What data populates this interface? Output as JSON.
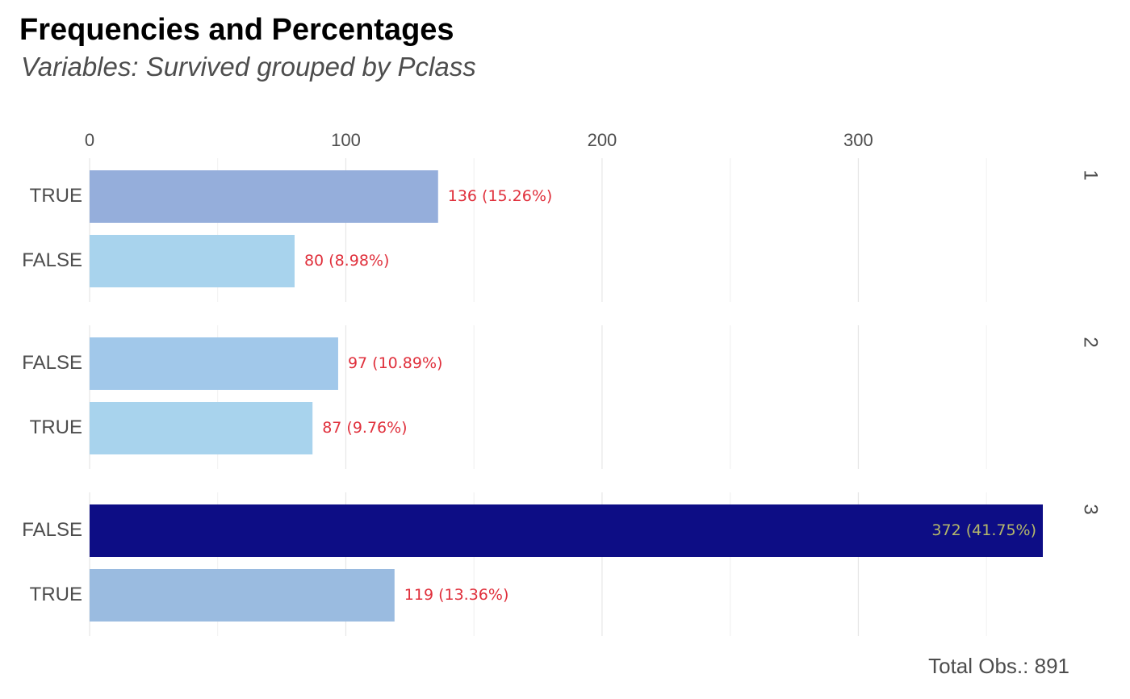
{
  "chart_data": {
    "type": "bar",
    "orientation": "horizontal",
    "title": "Frequencies and Percentages",
    "subtitle": "Variables: Survived grouped by Pclass",
    "caption": "Total Obs.: 891",
    "xlim": [
      0,
      372
    ],
    "x_ticks": [
      0,
      100,
      200,
      300
    ],
    "grid": true,
    "panels": [
      {
        "facet": "1",
        "bars": [
          {
            "category": "TRUE",
            "value": 136,
            "label": "136 (15.26%)",
            "color": "#95aedb"
          },
          {
            "category": "FALSE",
            "value": 80,
            "label": "80 (8.98%)",
            "color": "#a8d3ed"
          }
        ]
      },
      {
        "facet": "2",
        "bars": [
          {
            "category": "FALSE",
            "value": 97,
            "label": "97 (10.89%)",
            "color": "#a1c8ea"
          },
          {
            "category": "TRUE",
            "value": 87,
            "label": "87 (9.76%)",
            "color": "#a8d3ed"
          }
        ]
      },
      {
        "facet": "3",
        "bars": [
          {
            "category": "FALSE",
            "value": 372,
            "label": "372 (41.75%)",
            "color": "#0d0d85",
            "label_inside": true
          },
          {
            "category": "TRUE",
            "value": 119,
            "label": "119 (13.36%)",
            "color": "#9abbe0"
          }
        ]
      }
    ],
    "label_color": "#e0303c",
    "inside_label_color": "#b5b86a"
  }
}
